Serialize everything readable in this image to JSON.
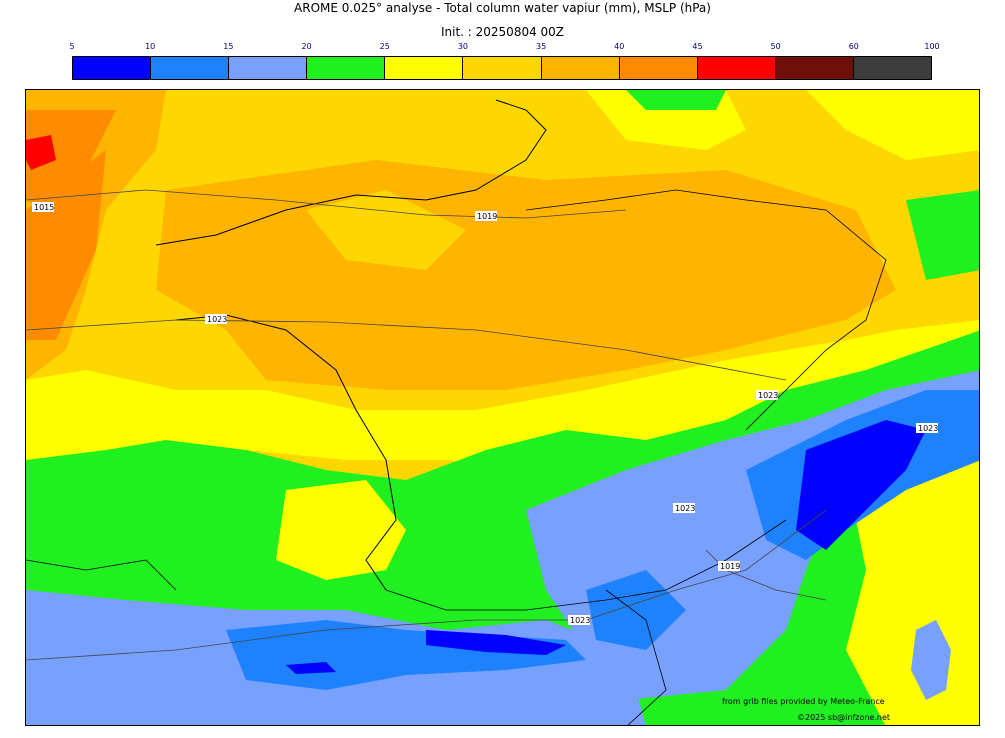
{
  "title": "AROME 0.025° analyse - Total column water vapiur (mm), MSLP (hPa)",
  "subtitle": "Init. : 20250804 00Z",
  "colorbar": {
    "ticks": [
      "5",
      "10",
      "15",
      "20",
      "25",
      "30",
      "35",
      "40",
      "45",
      "50",
      "60",
      "100"
    ],
    "colors": [
      "#0000ff",
      "#1e82ff",
      "#78a0ff",
      "#20f020",
      "#ffff00",
      "#ffd700",
      "#ffb400",
      "#ff8c00",
      "#ff0000",
      "#6e1009",
      "#3c3c3c"
    ]
  },
  "isobars": [
    "1015",
    "1019",
    "1023",
    "1023",
    "1023",
    "1023",
    "1019",
    "1023"
  ],
  "credit": {
    "line1": "from grib files provided by Meteo-France",
    "line2": "©2025 sb@infzone.net"
  }
}
